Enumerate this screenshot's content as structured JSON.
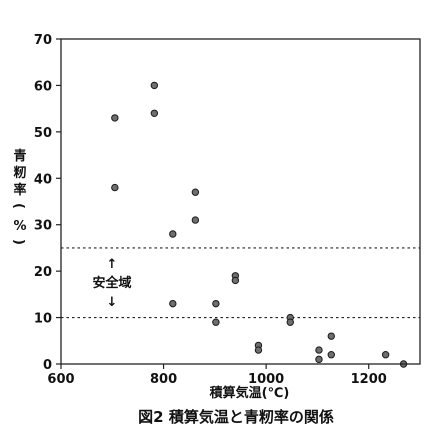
{
  "chart_data": {
    "type": "scatter",
    "title": "",
    "caption": "図2 積算気温と青籾率の関係",
    "xlabel": "積算気温(℃)",
    "ylabel": "青籾率(%)",
    "xlim": [
      600,
      1300
    ],
    "ylim": [
      0,
      70
    ],
    "x_ticks": [
      600,
      800,
      1000,
      1200
    ],
    "y_ticks": [
      0,
      10,
      20,
      30,
      40,
      50,
      60,
      70
    ],
    "grid": false,
    "legend": "none",
    "reference_lines": [
      {
        "y": 25,
        "style": "dotted"
      },
      {
        "y": 10,
        "style": "dotted"
      }
    ],
    "annotation": {
      "text": "安全域",
      "arrow_up": "↑",
      "arrow_down": "↓"
    },
    "marker_color": "#6e6e6e",
    "series": [
      {
        "points": [
          {
            "x": 705,
            "y": 53
          },
          {
            "x": 705,
            "y": 38
          },
          {
            "x": 782,
            "y": 60
          },
          {
            "x": 782,
            "y": 54
          },
          {
            "x": 818,
            "y": 28
          },
          {
            "x": 818,
            "y": 13
          },
          {
            "x": 862,
            "y": 37
          },
          {
            "x": 862,
            "y": 31
          },
          {
            "x": 902,
            "y": 13
          },
          {
            "x": 902,
            "y": 9
          },
          {
            "x": 940,
            "y": 19
          },
          {
            "x": 940,
            "y": 18
          },
          {
            "x": 985,
            "y": 4
          },
          {
            "x": 985,
            "y": 3
          },
          {
            "x": 1047,
            "y": 10
          },
          {
            "x": 1047,
            "y": 9
          },
          {
            "x": 1103,
            "y": 3
          },
          {
            "x": 1103,
            "y": 1
          },
          {
            "x": 1127,
            "y": 6
          },
          {
            "x": 1127,
            "y": 2
          },
          {
            "x": 1233,
            "y": 2
          },
          {
            "x": 1268,
            "y": 0
          }
        ]
      }
    ]
  }
}
